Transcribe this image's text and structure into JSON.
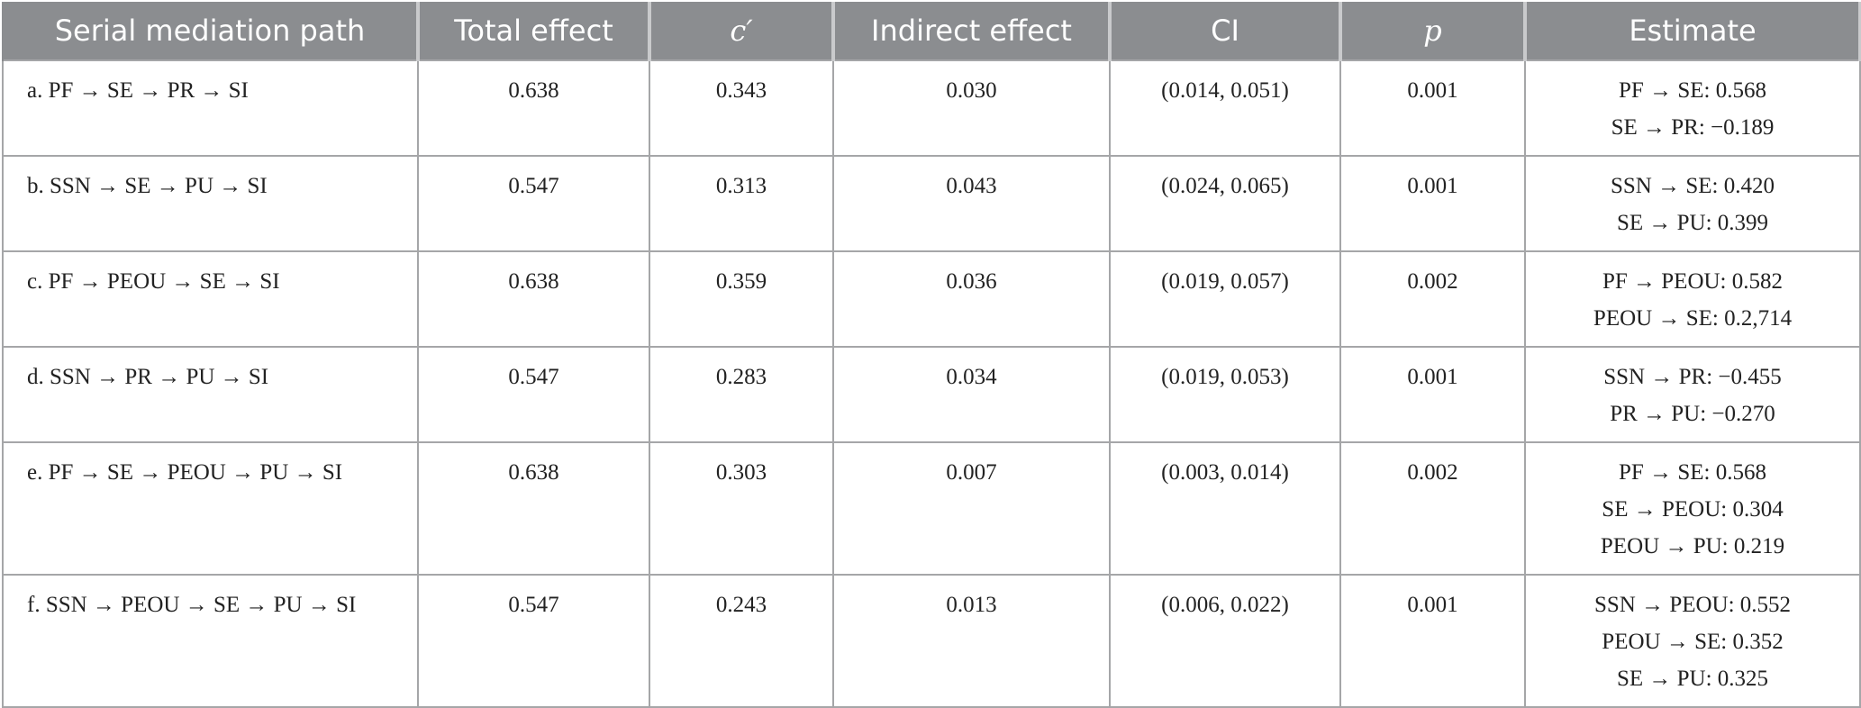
{
  "table": {
    "header": [
      "Serial mediation path",
      "Total effect",
      "c′",
      "Indirect effect",
      "CI",
      "p",
      "Estimate"
    ],
    "rows": [
      [
        "a. PF → SE → PR → SI",
        "0.638",
        "0.343",
        "0.030",
        "(0.014, 0.051)",
        "0.001",
        [
          "PF → SE: 0.568",
          "SE → PR: −0.189"
        ]
      ],
      [
        "b. SSN → SE → PU → SI",
        "0.547",
        "0.313",
        "0.043",
        "(0.024, 0.065)",
        "0.001",
        [
          "SSN → SE: 0.420",
          "SE → PU: 0.399"
        ]
      ],
      [
        "c. PF → PEOU → SE → SI",
        "0.638",
        "0.359",
        "0.036",
        "(0.019, 0.057)",
        "0.002",
        [
          "PF → PEOU: 0.582",
          "PEOU → SE: 0.2,714"
        ]
      ],
      [
        "d. SSN → PR → PU → SI",
        "0.547",
        "0.283",
        "0.034",
        "(0.019, 0.053)",
        "0.001",
        [
          "SSN → PR: −0.455",
          "PR → PU: −0.270"
        ]
      ],
      [
        "e. PF → SE → PEOU → PU → SI",
        "0.638",
        "0.303",
        "0.007",
        "(0.003, 0.014)",
        "0.002",
        [
          "PF → SE: 0.568",
          "SE → PEOU: 0.304",
          "PEOU → PU: 0.219"
        ]
      ],
      [
        "f. SSN → PEOU → SE → PU → SI",
        "0.547",
        "0.243",
        "0.013",
        "(0.006, 0.022)",
        "0.001",
        [
          "SSN → PEOU: 0.552",
          "PEOU → SE: 0.352",
          "SE → PU: 0.325"
        ]
      ]
    ]
  }
}
